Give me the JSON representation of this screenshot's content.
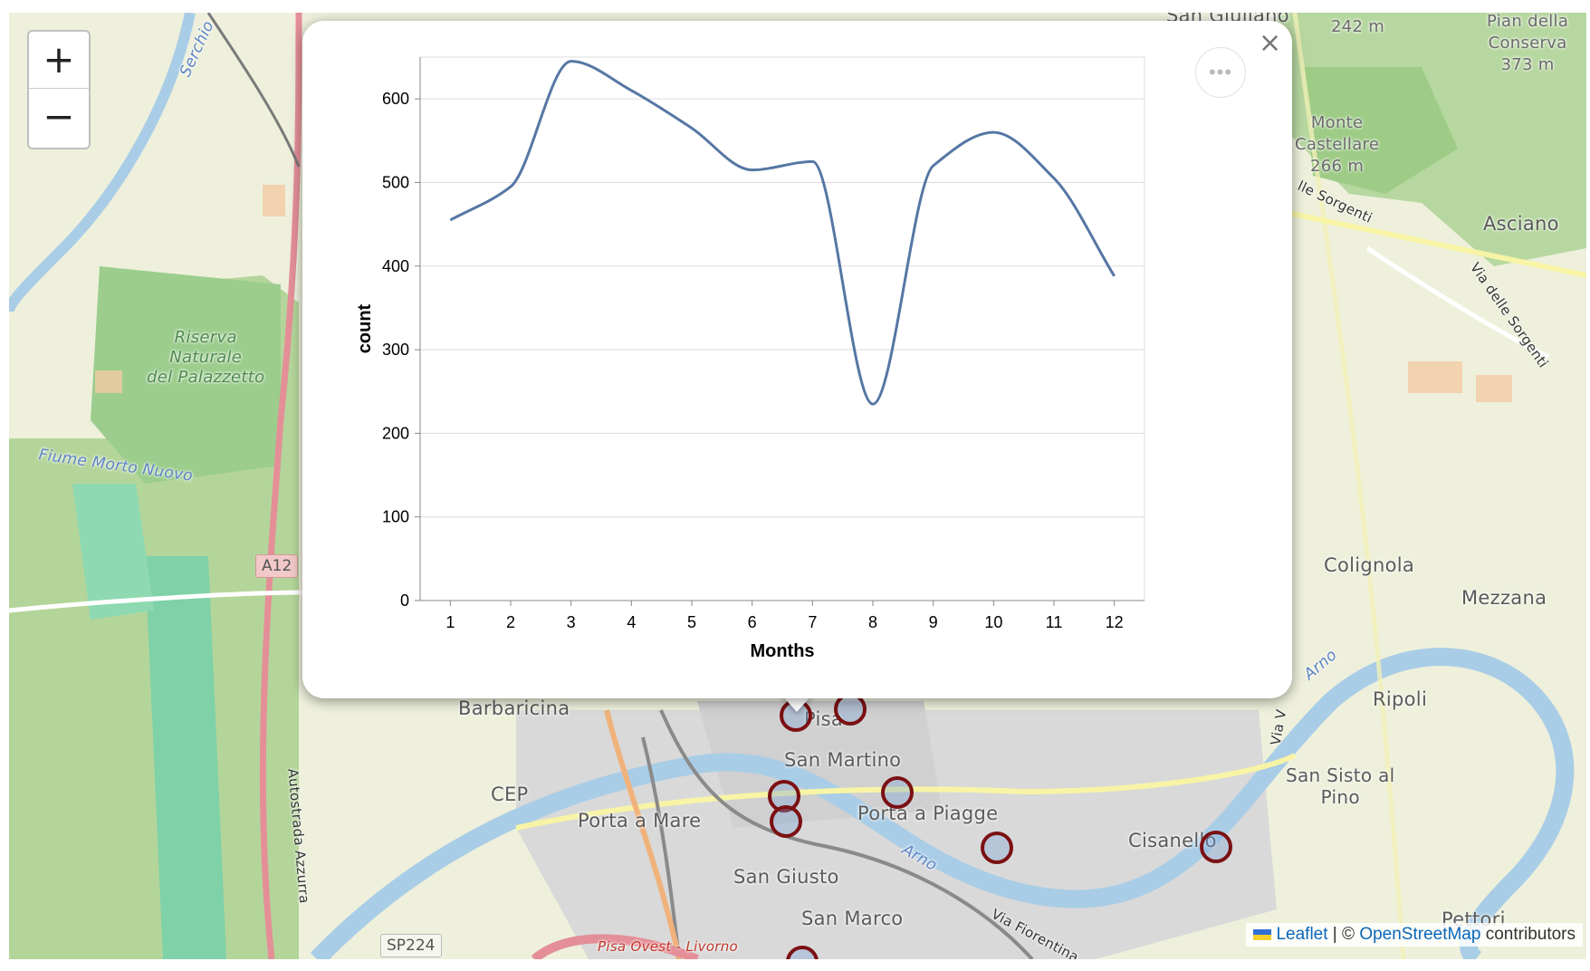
{
  "zoom": {
    "in_label": "+",
    "out_label": "−"
  },
  "map_labels": {
    "san_giuliano": "San Giuliano",
    "elev_242": "242 m",
    "pian_della_conserva": "Pian della\nConserva\n373 m",
    "monte_castellare": "Monte\nCastellare\n266 m",
    "asciano": "Asciano",
    "riserva": "Riserva\nNaturale\ndel Palazzetto",
    "fiume_morto": "Fiume Morto Nuovo",
    "colignola": "Colignola",
    "mezzana": "Mezzana",
    "ripoli": "Ripoli",
    "san_sisto": "San Sisto al\nPino",
    "pettori": "Pettori",
    "barbaricina": "Barbaricina",
    "cep": "CEP",
    "porta_a_mare": "Porta a Mare",
    "san_martino": "San Martino",
    "porta_a_piagge": "Porta a Piagge",
    "cisanello": "Cisanello",
    "san_giusto": "San Giusto",
    "san_marco": "San Marco",
    "pisa": "Pisa",
    "arno": "Arno",
    "arno2": "Arno",
    "via_fiorentina": "Via Fiorentina",
    "via_delle_sorgenti": "Via delle Sorgenti",
    "delle_sorgenti": "lle Sorgenti",
    "pisa_ovest": "Pisa Ovest - Livorno",
    "autostrada": "Autostrada Azzurra",
    "via_v": "Via V",
    "serchio": "Serchio",
    "a12": "A12",
    "sp224": "SP224"
  },
  "attribution": {
    "leaflet": "Leaflet",
    "separator": " | © ",
    "osm": "OpenStreetMap",
    "suffix": " contributors"
  },
  "popup": {
    "close_label": "×",
    "actions_label": "•••"
  },
  "colors": {
    "line": "#5677a4",
    "marker_ring": "#7b1012",
    "grid": "#dddddd"
  },
  "chart_data": {
    "type": "line",
    "xlabel": "Months",
    "ylabel": "count",
    "x": [
      1,
      2,
      3,
      4,
      5,
      6,
      7,
      8,
      9,
      10,
      11,
      12
    ],
    "y": [
      455,
      495,
      645,
      610,
      565,
      515,
      525,
      235,
      520,
      560,
      505,
      388
    ],
    "ylim": [
      0,
      650
    ],
    "yticks": [
      0,
      100,
      200,
      300,
      400,
      500,
      600
    ],
    "xlim": [
      0.5,
      12.5
    ],
    "grid": "horizontal",
    "interpolation": "monotone"
  }
}
